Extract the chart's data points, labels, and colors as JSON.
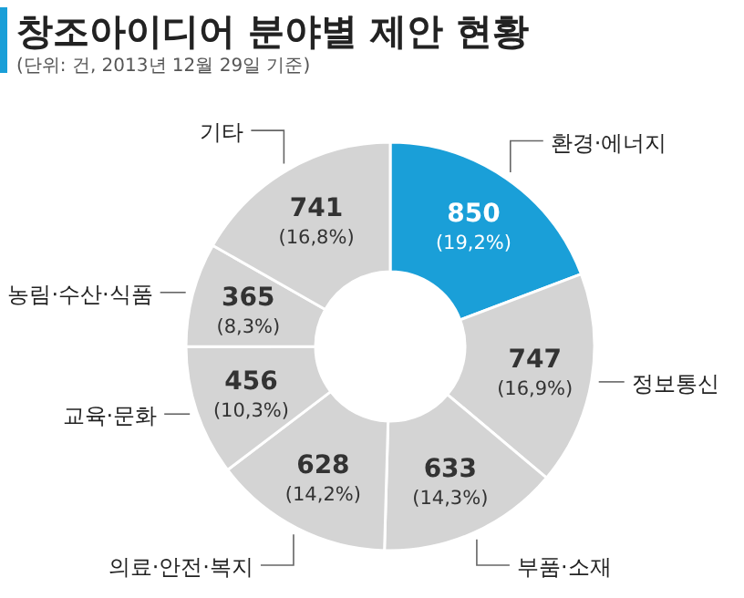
{
  "chart_data": {
    "type": "donut",
    "title": "창조아이디어 분야별 제안 현황",
    "subtitle": "(단위: 건, 2013년 12월 29일 기준)",
    "categories": [
      "환경·에너지",
      "정보통신",
      "부품·소재",
      "의료·안전·복지",
      "교육·문화",
      "농림·수산·식품",
      "기타"
    ],
    "values": [
      850,
      747,
      633,
      628,
      456,
      365,
      741
    ],
    "value_labels": [
      "850\n(19,2%)",
      "747\n(16,9%)",
      "633\n(14,3%)",
      "628\n(14,2%)",
      "456\n(10,3%)",
      "365\n(8,3%)",
      "741\n(16,8%)"
    ],
    "colors": [
      "#1a9fd8",
      "#d4d4d4",
      "#d4d4d4",
      "#d4d4d4",
      "#d4d4d4",
      "#d4d4d4",
      "#d4d4d4"
    ]
  }
}
